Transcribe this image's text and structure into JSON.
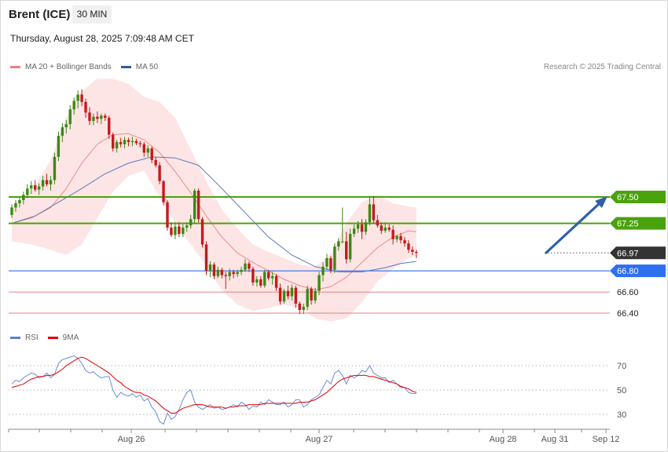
{
  "header": {
    "title": "Brent (ICE)",
    "timeframe": "30 MIN",
    "datetime": "Thursday, August 28, 2025 7:09:48 AM CET"
  },
  "legend": {
    "items": [
      {
        "label": "MA 20 + Bollinger Bands",
        "color": "#f08080"
      },
      {
        "label": "MA 50",
        "color": "#2e5aa7"
      }
    ],
    "copyright": "Research © 2025 Trading Central"
  },
  "rsi_legend": {
    "items": [
      {
        "label": "RSI",
        "color": "#5b7fd6"
      },
      {
        "label": "9MA",
        "color": "#e00000"
      }
    ]
  },
  "colors": {
    "up": "#3a8a12",
    "down": "#c41a1a",
    "resistance": "#4aa20c",
    "support": "#2e6ff0",
    "support_line": "#e05a5a",
    "current": "#333333",
    "band_fill": "#fde0e0",
    "arrow": "#2e5fa7"
  },
  "chart_data": [
    {
      "type": "candlestick",
      "title": "Brent (ICE)",
      "ylim": [
        66.25,
        68.55
      ],
      "x_tick_labels": [
        "Aug 26",
        "Aug 27",
        "Aug 28",
        "Aug 31",
        "Sep 12"
      ],
      "price_levels": [
        {
          "label": "67.50",
          "value": 67.5,
          "kind": "resistance"
        },
        {
          "label": "67.25",
          "value": 67.25,
          "kind": "resistance"
        },
        {
          "label": "66.97",
          "value": 66.97,
          "kind": "current"
        },
        {
          "label": "66.80",
          "value": 66.8,
          "kind": "support"
        },
        {
          "label": "66.60",
          "value": 66.6,
          "kind": "support_line"
        },
        {
          "label": "66.40",
          "value": 66.4,
          "kind": "support_line"
        }
      ],
      "candles": [
        [
          67.33,
          67.43,
          67.3,
          67.4
        ],
        [
          67.4,
          67.47,
          67.36,
          67.44
        ],
        [
          67.44,
          67.5,
          67.4,
          67.47
        ],
        [
          67.47,
          67.55,
          67.43,
          67.52
        ],
        [
          67.52,
          67.62,
          67.49,
          67.58
        ],
        [
          67.58,
          67.65,
          67.53,
          67.61
        ],
        [
          67.61,
          67.66,
          67.55,
          67.57
        ],
        [
          67.57,
          67.63,
          67.52,
          67.6
        ],
        [
          67.6,
          67.7,
          67.56,
          67.66
        ],
        [
          67.66,
          67.72,
          67.6,
          67.62
        ],
        [
          67.62,
          67.7,
          67.56,
          67.66
        ],
        [
          67.66,
          67.92,
          67.62,
          67.88
        ],
        [
          67.88,
          68.12,
          67.84,
          68.08
        ],
        [
          68.08,
          68.2,
          68.02,
          68.16
        ],
        [
          68.16,
          68.23,
          68.1,
          68.19
        ],
        [
          68.19,
          68.37,
          68.14,
          68.33
        ],
        [
          68.33,
          68.44,
          68.28,
          68.41
        ],
        [
          68.41,
          68.51,
          68.34,
          68.47
        ],
        [
          68.47,
          68.52,
          68.36,
          68.4
        ],
        [
          68.4,
          68.43,
          68.25,
          68.3
        ],
        [
          68.3,
          68.35,
          68.18,
          68.22
        ],
        [
          68.22,
          68.29,
          68.18,
          68.26
        ],
        [
          68.26,
          68.31,
          68.2,
          68.24
        ],
        [
          68.24,
          68.29,
          68.19,
          68.27
        ],
        [
          68.27,
          68.29,
          68.22,
          68.25
        ],
        [
          68.25,
          68.27,
          68.05,
          68.09
        ],
        [
          68.09,
          68.11,
          67.93,
          67.96
        ],
        [
          67.96,
          68.04,
          67.92,
          68.02
        ],
        [
          68.02,
          68.06,
          67.97,
          68.0
        ],
        [
          68.0,
          68.07,
          67.96,
          68.04
        ],
        [
          68.04,
          68.06,
          67.98,
          68.02
        ],
        [
          68.02,
          68.07,
          67.98,
          68.03
        ],
        [
          68.03,
          68.05,
          67.99,
          68.01
        ],
        [
          68.01,
          68.03,
          67.97,
          68.0
        ],
        [
          68.0,
          68.02,
          67.88,
          67.92
        ],
        [
          67.92,
          67.99,
          67.88,
          67.96
        ],
        [
          67.96,
          67.98,
          67.82,
          67.85
        ],
        [
          67.85,
          67.88,
          67.78,
          67.8
        ],
        [
          67.8,
          67.83,
          67.62,
          67.65
        ],
        [
          67.65,
          67.66,
          67.42,
          67.45
        ],
        [
          67.45,
          67.47,
          67.18,
          67.21
        ],
        [
          67.21,
          67.26,
          67.12,
          67.14
        ],
        [
          67.14,
          67.26,
          67.1,
          67.22
        ],
        [
          67.22,
          67.26,
          67.12,
          67.15
        ],
        [
          67.15,
          67.24,
          67.12,
          67.21
        ],
        [
          67.21,
          67.26,
          67.17,
          67.23
        ],
        [
          67.23,
          67.33,
          67.2,
          67.29
        ],
        [
          67.29,
          67.58,
          67.25,
          67.56
        ],
        [
          67.56,
          67.58,
          67.26,
          67.29
        ],
        [
          67.29,
          67.31,
          67.02,
          67.05
        ],
        [
          67.05,
          67.08,
          66.76,
          66.8
        ],
        [
          66.8,
          66.89,
          66.74,
          66.86
        ],
        [
          66.86,
          66.88,
          66.72,
          66.75
        ],
        [
          66.75,
          66.84,
          66.73,
          66.81
        ],
        [
          66.81,
          66.83,
          66.73,
          66.76
        ],
        [
          66.76,
          66.79,
          66.63,
          66.75
        ],
        [
          66.75,
          66.82,
          66.71,
          66.79
        ],
        [
          66.79,
          66.81,
          66.73,
          66.77
        ],
        [
          66.77,
          66.81,
          66.74,
          66.79
        ],
        [
          66.79,
          66.84,
          66.76,
          66.81
        ],
        [
          66.81,
          66.91,
          66.79,
          66.87
        ],
        [
          66.87,
          66.89,
          66.79,
          66.82
        ],
        [
          66.82,
          66.84,
          66.66,
          66.69
        ],
        [
          66.69,
          66.75,
          66.65,
          66.72
        ],
        [
          66.72,
          66.75,
          66.64,
          66.66
        ],
        [
          66.66,
          66.81,
          66.64,
          66.79
        ],
        [
          66.79,
          66.81,
          66.71,
          66.73
        ],
        [
          66.73,
          66.79,
          66.67,
          66.75
        ],
        [
          66.75,
          66.77,
          66.61,
          66.64
        ],
        [
          66.64,
          66.68,
          66.48,
          66.51
        ],
        [
          66.51,
          66.63,
          66.49,
          66.61
        ],
        [
          66.61,
          66.66,
          66.53,
          66.56
        ],
        [
          66.56,
          66.67,
          66.52,
          66.64
        ],
        [
          66.64,
          66.66,
          66.45,
          66.49
        ],
        [
          66.49,
          66.51,
          66.39,
          66.43
        ],
        [
          66.43,
          66.49,
          66.39,
          66.46
        ],
        [
          66.46,
          66.66,
          66.43,
          66.63
        ],
        [
          66.63,
          66.65,
          66.48,
          66.52
        ],
        [
          66.52,
          66.64,
          66.49,
          66.61
        ],
        [
          66.61,
          66.79,
          66.57,
          66.76
        ],
        [
          66.76,
          66.88,
          66.7,
          66.84
        ],
        [
          66.84,
          66.96,
          66.81,
          66.92
        ],
        [
          66.92,
          66.94,
          66.78,
          66.81
        ],
        [
          66.81,
          67.06,
          66.78,
          67.03
        ],
        [
          67.03,
          67.11,
          66.99,
          67.08
        ],
        [
          67.08,
          67.4,
          67.06,
          67.08
        ],
        [
          67.08,
          67.17,
          66.87,
          66.91
        ],
        [
          66.91,
          67.2,
          66.88,
          67.15
        ],
        [
          67.15,
          67.24,
          67.12,
          67.2
        ],
        [
          67.2,
          67.27,
          67.16,
          67.24
        ],
        [
          67.24,
          67.29,
          67.1,
          67.17
        ],
        [
          67.17,
          67.29,
          67.14,
          67.26
        ],
        [
          67.26,
          67.51,
          67.23,
          67.43
        ],
        [
          67.43,
          67.51,
          67.25,
          67.28
        ],
        [
          67.28,
          67.33,
          67.21,
          67.23
        ],
        [
          67.23,
          67.26,
          67.15,
          67.18
        ],
        [
          67.18,
          67.26,
          67.16,
          67.21
        ],
        [
          67.21,
          67.24,
          67.17,
          67.19
        ],
        [
          67.19,
          67.23,
          67.05,
          67.1
        ],
        [
          67.1,
          67.14,
          67.07,
          67.13
        ],
        [
          67.13,
          67.16,
          67.06,
          67.09
        ],
        [
          67.09,
          67.12,
          67.03,
          67.06
        ],
        [
          67.06,
          67.09,
          66.97,
          67.0
        ],
        [
          67.0,
          67.03,
          66.95,
          66.98
        ],
        [
          66.98,
          67.0,
          66.92,
          66.97
        ]
      ],
      "ma20": [
        [
          0,
          67.25
        ],
        [
          5,
          67.3
        ],
        [
          10,
          67.4
        ],
        [
          14,
          67.58
        ],
        [
          18,
          67.82
        ],
        [
          22,
          68.0
        ],
        [
          26,
          68.09
        ],
        [
          30,
          68.1
        ],
        [
          34,
          68.04
        ],
        [
          38,
          67.92
        ],
        [
          42,
          67.74
        ],
        [
          46,
          67.54
        ],
        [
          50,
          67.32
        ],
        [
          54,
          67.12
        ],
        [
          58,
          66.97
        ],
        [
          62,
          66.88
        ],
        [
          66,
          66.8
        ],
        [
          70,
          66.72
        ],
        [
          74,
          66.66
        ],
        [
          78,
          66.62
        ],
        [
          82,
          66.65
        ],
        [
          86,
          66.74
        ],
        [
          90,
          66.88
        ],
        [
          94,
          67.02
        ],
        [
          98,
          67.12
        ],
        [
          102,
          67.18
        ],
        [
          104,
          67.17
        ]
      ],
      "bb_upper": [
        [
          0,
          67.42
        ],
        [
          5,
          67.55
        ],
        [
          10,
          67.85
        ],
        [
          14,
          68.25
        ],
        [
          18,
          68.5
        ],
        [
          22,
          68.62
        ],
        [
          26,
          68.62
        ],
        [
          30,
          68.57
        ],
        [
          34,
          68.45
        ],
        [
          38,
          68.4
        ],
        [
          42,
          68.25
        ],
        [
          46,
          67.95
        ],
        [
          50,
          67.65
        ],
        [
          54,
          67.38
        ],
        [
          58,
          67.2
        ],
        [
          62,
          67.05
        ],
        [
          66,
          66.98
        ],
        [
          70,
          66.92
        ],
        [
          74,
          66.86
        ],
        [
          78,
          66.84
        ],
        [
          82,
          66.96
        ],
        [
          86,
          67.25
        ],
        [
          90,
          67.45
        ],
        [
          94,
          67.52
        ],
        [
          98,
          67.44
        ],
        [
          102,
          67.41
        ],
        [
          104,
          67.4
        ]
      ],
      "bb_lower": [
        [
          0,
          67.08
        ],
        [
          5,
          67.05
        ],
        [
          10,
          67.0
        ],
        [
          14,
          66.95
        ],
        [
          18,
          67.05
        ],
        [
          22,
          67.3
        ],
        [
          26,
          67.55
        ],
        [
          30,
          67.7
        ],
        [
          34,
          67.75
        ],
        [
          38,
          67.5
        ],
        [
          42,
          67.25
        ],
        [
          46,
          67.05
        ],
        [
          50,
          66.85
        ],
        [
          54,
          66.62
        ],
        [
          58,
          66.48
        ],
        [
          62,
          66.42
        ],
        [
          66,
          66.45
        ],
        [
          70,
          66.48
        ],
        [
          74,
          66.45
        ],
        [
          78,
          66.35
        ],
        [
          82,
          66.32
        ],
        [
          86,
          66.35
        ],
        [
          90,
          66.5
        ],
        [
          94,
          66.7
        ],
        [
          98,
          66.82
        ],
        [
          102,
          66.92
        ],
        [
          104,
          66.94
        ]
      ],
      "ma50": [
        [
          0,
          67.25
        ],
        [
          6,
          67.32
        ],
        [
          12,
          67.45
        ],
        [
          18,
          67.58
        ],
        [
          24,
          67.72
        ],
        [
          30,
          67.82
        ],
        [
          36,
          67.88
        ],
        [
          42,
          67.87
        ],
        [
          48,
          67.8
        ],
        [
          54,
          67.58
        ],
        [
          60,
          67.35
        ],
        [
          66,
          67.12
        ],
        [
          72,
          66.95
        ],
        [
          78,
          66.84
        ],
        [
          84,
          66.79
        ],
        [
          90,
          66.79
        ],
        [
          96,
          66.83
        ],
        [
          100,
          66.87
        ],
        [
          104,
          66.89
        ]
      ]
    },
    {
      "type": "line",
      "title": "RSI",
      "ylim": [
        19,
        78
      ],
      "y_tick_labels": [
        "70",
        "50",
        "30"
      ],
      "series": [
        {
          "name": "RSI",
          "values": [
            55,
            58,
            57,
            60,
            62,
            64,
            63,
            60,
            61,
            64,
            60,
            63,
            72,
            75,
            76,
            77,
            78,
            76,
            72,
            66,
            64,
            65,
            62,
            60,
            61,
            61,
            50,
            44,
            48,
            46,
            45,
            47,
            44,
            46,
            41,
            43,
            36,
            32,
            24,
            22,
            31,
            26,
            28,
            34,
            42,
            48,
            50,
            40,
            36,
            34,
            36,
            38,
            35,
            36,
            34,
            35,
            36,
            38,
            36,
            40,
            38,
            34,
            37,
            36,
            40,
            38,
            42,
            40,
            38,
            38,
            40,
            36,
            38,
            42,
            42,
            36,
            38,
            42,
            44,
            46,
            52,
            58,
            55,
            64,
            66,
            62,
            55,
            62,
            60,
            62,
            66,
            65,
            70,
            64,
            62,
            60,
            60,
            56,
            58,
            55,
            52,
            52,
            48,
            47,
            47
          ]
        },
        {
          "name": "9MA",
          "values": [
            52,
            53,
            54,
            55,
            57,
            59,
            60,
            61,
            61,
            62,
            62,
            63,
            65,
            67,
            70,
            72,
            74,
            76,
            77,
            76,
            74,
            72,
            70,
            68,
            66,
            64,
            61,
            58,
            56,
            53,
            51,
            49,
            48,
            48,
            46,
            45,
            43,
            41,
            38,
            35,
            33,
            31,
            31,
            33,
            35,
            36,
            37,
            38,
            38,
            38,
            37,
            36,
            36,
            36,
            36,
            35,
            36,
            36,
            37,
            37,
            37,
            38,
            38,
            38,
            38,
            39,
            39,
            39,
            39,
            39,
            39,
            39,
            39,
            39,
            40,
            40,
            40,
            41,
            42,
            44,
            46,
            48,
            51,
            54,
            57,
            59,
            60,
            61,
            62,
            62,
            62,
            62,
            61,
            61,
            60,
            59,
            58,
            57,
            56,
            55,
            53,
            52,
            51,
            49,
            48
          ]
        }
      ]
    }
  ]
}
